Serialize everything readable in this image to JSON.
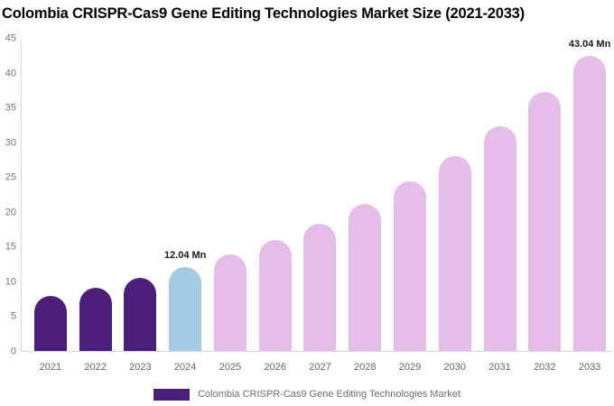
{
  "title": "Colombia CRISPR-Cas9 Gene Editing Technologies Market Size (2021-2033)",
  "chart_data": {
    "type": "bar",
    "categories": [
      "2021",
      "2022",
      "2023",
      "2024",
      "2025",
      "2026",
      "2027",
      "2028",
      "2029",
      "2030",
      "2031",
      "2032",
      "2033"
    ],
    "values": [
      7.9,
      9.1,
      10.5,
      12.04,
      13.9,
      16.0,
      18.4,
      21.2,
      24.4,
      28.1,
      32.4,
      37.3,
      43.04
    ],
    "unit": "Mn",
    "bar_colors": [
      "#4C1D79",
      "#4C1D79",
      "#4C1D79",
      "#A3CBE3",
      "#E5BDE8",
      "#E5BDE8",
      "#E5BDE8",
      "#E5BDE8",
      "#E5BDE8",
      "#E5BDE8",
      "#E5BDE8",
      "#E5BDE8",
      "#E5BDE8"
    ],
    "annotations": [
      {
        "category": "2024",
        "text": "12.04 Mn"
      },
      {
        "category": "2033",
        "text": "43.04 Mn"
      }
    ],
    "xlabel": "",
    "ylabel": "",
    "ylim": [
      0,
      45
    ],
    "yticks": [
      0,
      5,
      10,
      15,
      20,
      25,
      30,
      35,
      40,
      45
    ],
    "grid": false,
    "legend": {
      "position": "bottom",
      "entries": [
        {
          "label": "Colombia CRISPR-Cas9 Gene Editing Technologies Market",
          "color": "#4C1D79"
        }
      ]
    },
    "colors": {
      "background": "#FFFFFF",
      "title": "#000000",
      "axis_line": "#D9D9D9",
      "tick_label": "#757575",
      "x_tick_label": "#666666",
      "annotation_text": "#1A1A1A",
      "legend_text": "#6E6E6E"
    }
  }
}
